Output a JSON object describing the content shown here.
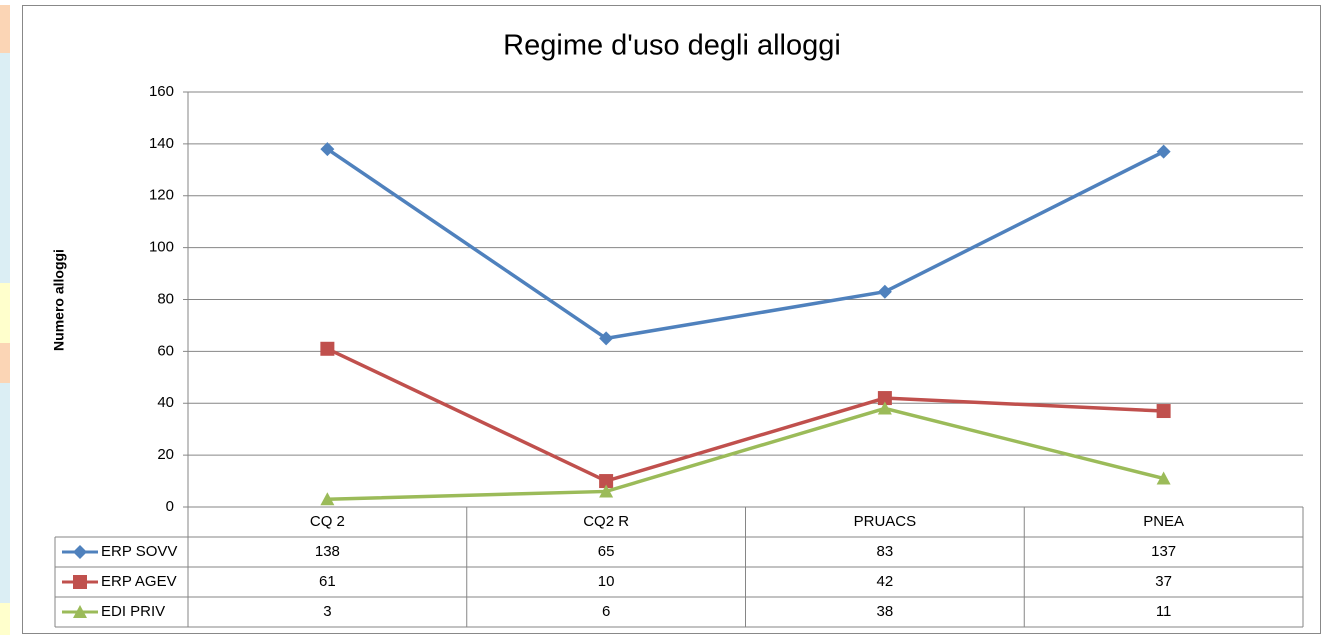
{
  "chart_data": {
    "type": "line",
    "title": "Regime d'uso degli alloggi",
    "y_label": "Numero alloggi",
    "categories": [
      "CQ 2",
      "CQ2 R",
      "PRUACS",
      "PNEA"
    ],
    "series": [
      {
        "name": "ERP SOVV",
        "color": "#4f81bd",
        "marker": "diamond",
        "values": [
          138,
          65,
          83,
          137
        ]
      },
      {
        "name": "ERP AGEV",
        "color": "#c0504d",
        "marker": "square",
        "values": [
          61,
          10,
          42,
          37
        ]
      },
      {
        "name": "EDI PRIV",
        "color": "#9bbb59",
        "marker": "triangle",
        "values": [
          3,
          6,
          38,
          11
        ]
      }
    ],
    "ylim": [
      0,
      160
    ],
    "yticks": [
      0,
      20,
      40,
      60,
      80,
      100,
      120,
      140,
      160
    ],
    "grid": true,
    "data_table": true
  }
}
